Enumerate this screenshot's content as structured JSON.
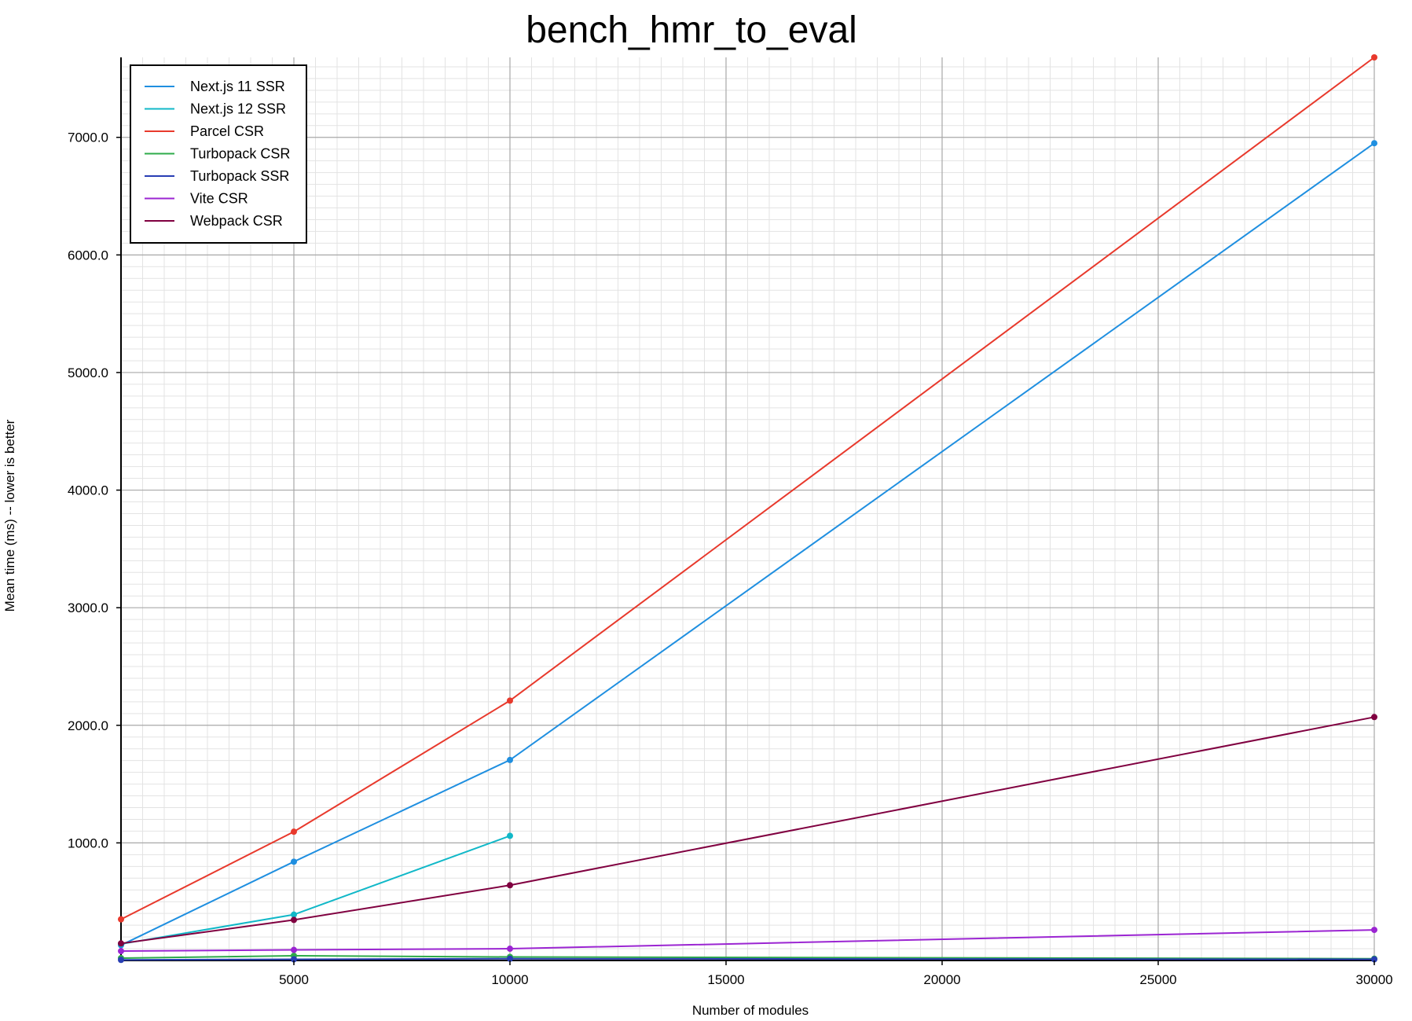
{
  "chart_data": {
    "type": "line",
    "title": "bench_hmr_to_eval",
    "xlabel": "Number of modules",
    "ylabel": "Mean time (ms) -- lower is better",
    "xlim": [
      1000,
      30000
    ],
    "ylim": [
      0,
      7680
    ],
    "x_ticks": [
      5000,
      10000,
      15000,
      20000,
      25000,
      30000
    ],
    "x_tick_labels": [
      "5000",
      "10000",
      "15000",
      "20000",
      "25000",
      "30000"
    ],
    "y_ticks": [
      1000,
      2000,
      3000,
      4000,
      5000,
      6000,
      7000
    ],
    "y_tick_labels": [
      "1000.0",
      "2000.0",
      "3000.0",
      "4000.0",
      "5000.0",
      "6000.0",
      "7000.0"
    ],
    "grid": true,
    "legend_position": "top-left",
    "series": [
      {
        "name": "Next.js 11 SSR",
        "color": "#1f8fe0",
        "points": [
          [
            1000,
            130
          ],
          [
            5000,
            840
          ],
          [
            10000,
            1705
          ],
          [
            30000,
            6950
          ]
        ]
      },
      {
        "name": "Next.js 12 SSR",
        "color": "#11b8c8",
        "points": [
          [
            1000,
            140
          ],
          [
            5000,
            390
          ],
          [
            10000,
            1060
          ]
        ]
      },
      {
        "name": "Parcel CSR",
        "color": "#e8392c",
        "points": [
          [
            1000,
            350
          ],
          [
            5000,
            1095
          ],
          [
            10000,
            2210
          ],
          [
            30000,
            7680
          ]
        ]
      },
      {
        "name": "Turbopack CSR",
        "color": "#2eab4a",
        "points": [
          [
            1000,
            20
          ],
          [
            5000,
            40
          ],
          [
            10000,
            30
          ],
          [
            30000,
            15
          ]
        ]
      },
      {
        "name": "Turbopack SSR",
        "color": "#283eb4",
        "points": [
          [
            1000,
            5
          ],
          [
            5000,
            10
          ],
          [
            10000,
            15
          ],
          [
            30000,
            10
          ]
        ]
      },
      {
        "name": "Vite CSR",
        "color": "#9b25d2",
        "points": [
          [
            1000,
            80
          ],
          [
            5000,
            90
          ],
          [
            10000,
            100
          ],
          [
            30000,
            260
          ]
        ]
      },
      {
        "name": "Webpack CSR",
        "color": "#800040",
        "points": [
          [
            1000,
            145
          ],
          [
            5000,
            345
          ],
          [
            10000,
            640
          ],
          [
            30000,
            2070
          ]
        ]
      }
    ]
  }
}
